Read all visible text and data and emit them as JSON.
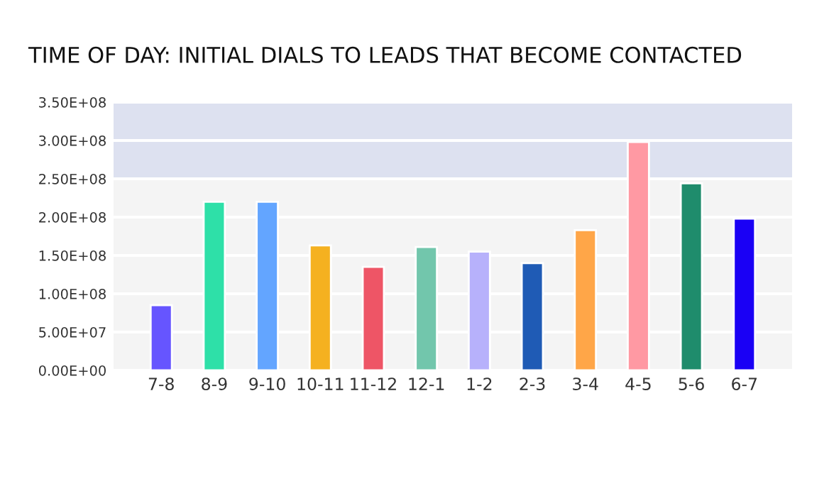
{
  "chart_data": {
    "type": "bar",
    "title": "TIME OF DAY: INITIAL DIALS TO LEADS THAT BECOME CONTACTED",
    "categories": [
      "7-8",
      "8-9",
      "9-10",
      "10-11",
      "11-12",
      "12-1",
      "1-2",
      "2-3",
      "3-4",
      "4-5",
      "5-6",
      "6-7"
    ],
    "values": [
      85000000,
      220000000,
      220000000,
      163000000,
      135000000,
      161000000,
      155000000,
      140000000,
      183000000,
      298000000,
      244000000,
      198000000
    ],
    "colors": [
      "#6655ff",
      "#2ee0a8",
      "#63a5ff",
      "#f5b120",
      "#ee5566",
      "#72c6ac",
      "#b7b1fb",
      "#1f5bb5",
      "#ffa648",
      "#ff99a3",
      "#1f8c6c",
      "#1a00f5"
    ],
    "ylim": [
      0,
      350000000
    ],
    "yticks": [
      {
        "value": 0,
        "label": "0.00E+00"
      },
      {
        "value": 50000000,
        "label": "5.00E+07"
      },
      {
        "value": 100000000,
        "label": "1.00E+08"
      },
      {
        "value": 150000000,
        "label": "1.50E+08"
      },
      {
        "value": 200000000,
        "label": "2.00E+08"
      },
      {
        "value": 250000000,
        "label": "2.50E+08"
      },
      {
        "value": 300000000,
        "label": "3.00E+08"
      },
      {
        "value": 350000000,
        "label": "3.50E+08"
      }
    ],
    "grid": "y",
    "bands": [
      {
        "axis": "y",
        "from": 250000000,
        "to": 350000000,
        "color": "#dde1f0"
      }
    ]
  }
}
